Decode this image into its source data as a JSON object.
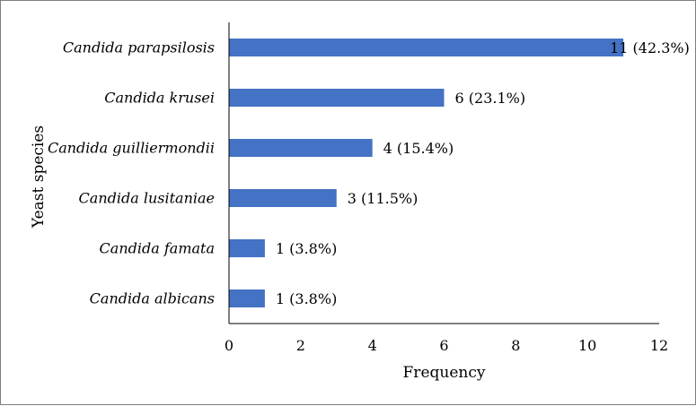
{
  "chart_data": {
    "type": "bar",
    "orientation": "horizontal",
    "categories": [
      "Candida parapsilosis",
      "Candida krusei",
      "Candida guilliermondii",
      "Candida lusitaniae",
      "Candida famata",
      "Candida albicans"
    ],
    "values": [
      11,
      6,
      4,
      3,
      1,
      1
    ],
    "data_labels": [
      "11 (42.3%)",
      "6 (23.1%)",
      "4 (15.4%)",
      "3 (11.5%)",
      "1 (3.8%)",
      "1 (3.8%)"
    ],
    "xlabel": "Frequency",
    "ylabel": "Yeast species",
    "xlim": [
      0,
      12
    ],
    "xticks": [
      0,
      2,
      4,
      6,
      8,
      10,
      12
    ],
    "grid": false,
    "legend": "none",
    "bar_color": "#4472c4"
  }
}
